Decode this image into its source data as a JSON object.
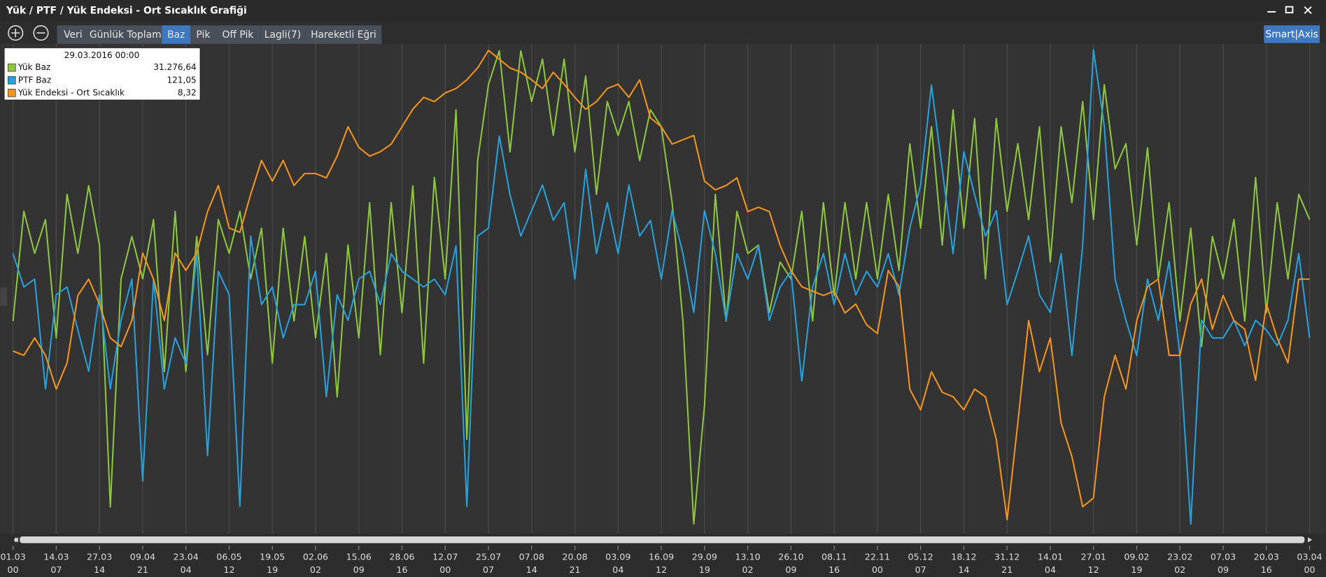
{
  "window": {
    "title": "Yük / PTF / Yük Endeksi - Ort Sıcaklık Grafiği"
  },
  "toolbar": {
    "buttons": [
      "Veri",
      "Günlük Toplam",
      "Baz",
      "Pik",
      "Off Pik",
      "Lagli(7)",
      "Hareketli Eğri"
    ],
    "active_index": 2,
    "smart_axis": "Smart|Axis"
  },
  "chart_data": {
    "type": "line",
    "x_ticks": [
      {
        "date": "01.03",
        "hour": "00"
      },
      {
        "date": "14.03",
        "hour": "07"
      },
      {
        "date": "27.03",
        "hour": "14"
      },
      {
        "date": "09.04",
        "hour": "21"
      },
      {
        "date": "23.04",
        "hour": "04"
      },
      {
        "date": "06.05",
        "hour": "12"
      },
      {
        "date": "19.05",
        "hour": "19"
      },
      {
        "date": "02.06",
        "hour": "02"
      },
      {
        "date": "15.06",
        "hour": "09"
      },
      {
        "date": "28.06",
        "hour": "16"
      },
      {
        "date": "12.07",
        "hour": "00"
      },
      {
        "date": "25.07",
        "hour": "07"
      },
      {
        "date": "07.08",
        "hour": "14"
      },
      {
        "date": "20.08",
        "hour": "21"
      },
      {
        "date": "03.09",
        "hour": "04"
      },
      {
        "date": "16.09",
        "hour": "12"
      },
      {
        "date": "29.09",
        "hour": "19"
      },
      {
        "date": "13.10",
        "hour": "02"
      },
      {
        "date": "26.10",
        "hour": "09"
      },
      {
        "date": "08.11",
        "hour": "16"
      },
      {
        "date": "22.11",
        "hour": "00"
      },
      {
        "date": "05.12",
        "hour": "07"
      },
      {
        "date": "18.12",
        "hour": "14"
      },
      {
        "date": "31.12",
        "hour": "21"
      },
      {
        "date": "14.01",
        "hour": "04"
      },
      {
        "date": "27.01",
        "hour": "12"
      },
      {
        "date": "09.02",
        "hour": "19"
      },
      {
        "date": "23.02",
        "hour": "02"
      },
      {
        "date": "07.03",
        "hour": "09"
      },
      {
        "date": "20.03",
        "hour": "16"
      },
      {
        "date": "03.04",
        "hour": "00"
      }
    ],
    "grid": true,
    "series": [
      {
        "name": "Yük Baz",
        "color": "#8dc63f",
        "ylim": [
          20000,
          40000
        ],
        "values": [
          28690,
          33170,
          31450,
          32830,
          28000,
          33860,
          31450,
          34210,
          31790,
          21100,
          30410,
          32140,
          30410,
          32830,
          26620,
          33170,
          26620,
          32140,
          27310,
          32830,
          31450,
          33170,
          30410,
          32480,
          26970,
          32480,
          28690,
          32140,
          28000,
          31450,
          25590,
          31790,
          28000,
          33520,
          27310,
          33520,
          29030,
          34210,
          26970,
          34550,
          30410,
          37310,
          23860,
          35240,
          38340,
          39720,
          35590,
          39720,
          37650,
          39380,
          36270,
          39380,
          35590,
          38690,
          33860,
          37650,
          36270,
          37650,
          35240,
          37310,
          36620,
          33520,
          28690,
          20410,
          25240,
          33860,
          28690,
          33170,
          31450,
          31790,
          29030,
          31100,
          30410,
          33170,
          28690,
          33520,
          29720,
          33520,
          30410,
          33520,
          30410,
          33860,
          30760,
          35930,
          32480,
          36620,
          31790,
          37310,
          32480,
          36960,
          30410,
          36960,
          33170,
          35930,
          32830,
          36620,
          31100,
          36620,
          33520,
          37650,
          32830,
          38340,
          34900,
          35930,
          31790,
          35760,
          30410,
          33520,
          28690,
          32480,
          27650,
          32140,
          30410,
          32830,
          28690,
          34550,
          29030,
          33520,
          30410,
          33860,
          32830
        ]
      },
      {
        "name": "PTF Baz",
        "color": "#27a0dc",
        "ylim": [
          0,
          250
        ],
        "values": [
          143,
          126,
          130,
          74,
          122,
          126,
          104,
          83,
          122,
          74,
          109,
          130,
          27,
          130,
          74,
          100,
          87,
          143,
          40,
          134,
          122,
          14,
          152,
          117,
          126,
          100,
          117,
          117,
          134,
          70,
          122,
          109,
          130,
          134,
          117,
          143,
          134,
          130,
          126,
          130,
          122,
          147,
          14,
          152,
          156,
          203,
          173,
          152,
          165,
          178,
          160,
          169,
          130,
          186,
          143,
          169,
          143,
          178,
          152,
          160,
          130,
          165,
          143,
          113,
          165,
          143,
          109,
          143,
          130,
          147,
          109,
          126,
          134,
          78,
          126,
          143,
          117,
          143,
          122,
          134,
          126,
          143,
          122,
          156,
          178,
          229,
          186,
          143,
          195,
          173,
          152,
          165,
          117,
          134,
          152,
          122,
          113,
          143,
          91,
          147,
          247,
          208,
          130,
          109,
          91,
          130,
          109,
          139,
          91,
          5,
          109,
          100,
          100,
          109,
          96,
          109,
          104,
          96,
          109,
          143,
          100
        ]
      },
      {
        "name": "Yük Endeksi - Ort Sıcaklık",
        "color": "#f7941d",
        "ylim": [
          -15,
          30
        ],
        "values": [
          1.8,
          1.4,
          3.0,
          1.4,
          -1.7,
          0.7,
          6.9,
          8.4,
          6.1,
          3.0,
          2.2,
          4.6,
          10.8,
          8.4,
          4.6,
          10.8,
          9.2,
          10.8,
          14.6,
          17.0,
          13.1,
          12.7,
          16.2,
          19.3,
          17.4,
          19.3,
          17.0,
          18.1,
          18.1,
          17.7,
          19.7,
          22.4,
          20.5,
          19.7,
          20.1,
          20.8,
          22.4,
          24.0,
          25.1,
          24.7,
          25.5,
          25.9,
          26.7,
          27.8,
          29.4,
          28.6,
          27.8,
          27.4,
          26.7,
          25.9,
          27.4,
          26.3,
          25.1,
          24.0,
          24.7,
          25.9,
          26.3,
          25.1,
          26.7,
          23.2,
          22.4,
          20.8,
          21.2,
          21.6,
          17.4,
          16.6,
          17.0,
          17.7,
          14.6,
          15.0,
          14.6,
          11.5,
          9.2,
          7.7,
          7.3,
          6.9,
          7.3,
          5.3,
          6.1,
          4.2,
          3.4,
          9.2,
          7.7,
          -1.7,
          -3.6,
          -0.1,
          -2.0,
          -2.4,
          -3.6,
          -1.7,
          -2.4,
          -6.3,
          -13.7,
          -4.8,
          4.6,
          -0.1,
          3.0,
          -4.8,
          -7.9,
          -12.5,
          -11.7,
          -2.4,
          1.4,
          -1.7,
          4.6,
          7.7,
          8.4,
          1.4,
          1.4,
          6.1,
          8.4,
          3.8,
          6.9,
          4.6,
          3.8,
          -0.9,
          6.1,
          3.0,
          0.7,
          8.4,
          8.4
        ]
      }
    ],
    "tooltip": {
      "date": "29.03.2016 00:00",
      "values": [
        "31.276,64",
        "121,05",
        "8,32"
      ]
    }
  }
}
